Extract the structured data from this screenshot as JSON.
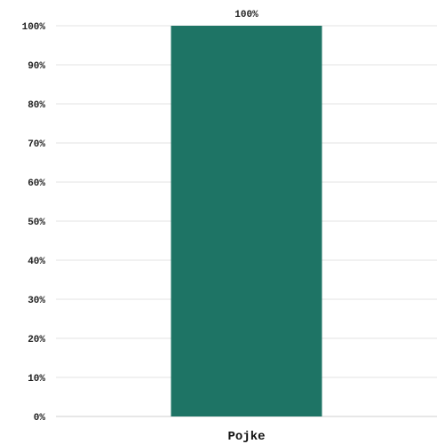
{
  "chart_data": {
    "type": "bar",
    "categories": [
      "Pojke"
    ],
    "values": [
      100
    ],
    "data_labels": [
      "100%"
    ],
    "title": "",
    "xlabel": "",
    "ylabel": "",
    "ylim": [
      0,
      100
    ],
    "y_ticks": [
      0,
      10,
      20,
      30,
      40,
      50,
      60,
      70,
      80,
      90,
      100
    ],
    "y_tick_labels": [
      "0%",
      "10%",
      "20%",
      "30%",
      "40%",
      "50%",
      "60%",
      "70%",
      "80%",
      "90%",
      "100%"
    ],
    "grid": true,
    "legend": "none",
    "bar_color": "#1e7465",
    "grid_color": "#e3e3e3"
  }
}
